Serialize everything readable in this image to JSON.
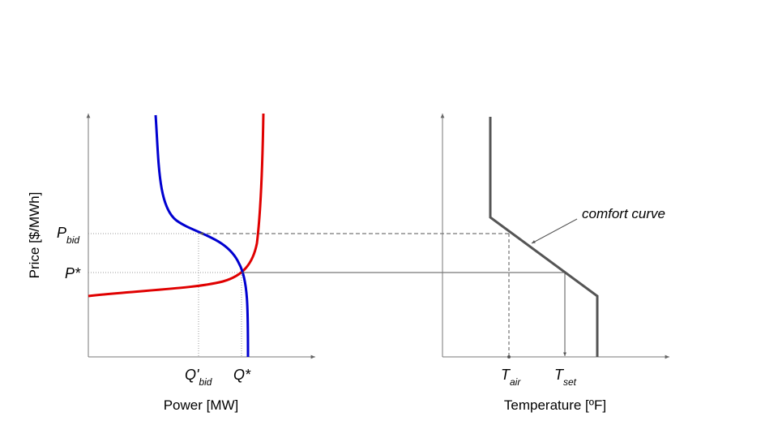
{
  "left_panel": {
    "y_axis_label": "Price [$/MWh]",
    "x_axis_label": "Power [MW]",
    "p_bid": {
      "base": "P",
      "sub": "bid"
    },
    "p_star": "P*",
    "q_bid": {
      "base": "Q'",
      "sub": "bid"
    },
    "q_star": "Q*",
    "supply_color": "#e00000",
    "demand_color": "#0000d0"
  },
  "right_panel": {
    "x_axis_label": "Temperature [ºF]",
    "t_air": {
      "base": "T",
      "sub": "air"
    },
    "t_set": {
      "base": "T",
      "sub": "set"
    },
    "annotation": "comfort curve",
    "curve_color": "#555555"
  }
}
